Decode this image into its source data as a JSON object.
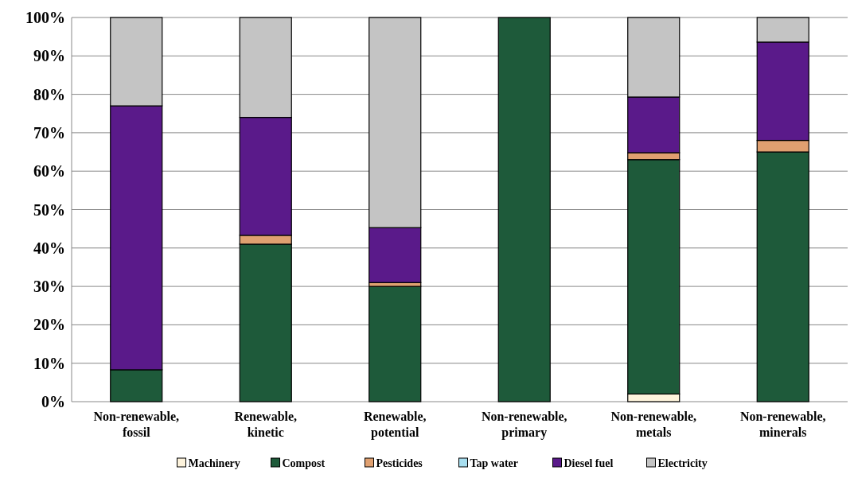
{
  "chart_data": {
    "type": "bar",
    "stacked": true,
    "categories": [
      "Non-renewable, fossil",
      "Renewable, kinetic",
      "Renewable, potential",
      "Non-renewable, primary",
      "Non-renewable, metals",
      "Non-renewable, minerals"
    ],
    "series": [
      {
        "name": "Machinery",
        "color": "#fdf3dc",
        "values": [
          0,
          0,
          0,
          0,
          2,
          0
        ]
      },
      {
        "name": "Compost",
        "color": "#1e5a3a",
        "values": [
          8.3,
          41,
          30,
          100,
          61,
          65
        ]
      },
      {
        "name": "Pesticides",
        "color": "#e0a070",
        "values": [
          0,
          2.3,
          1,
          0,
          1.8,
          3
        ]
      },
      {
        "name": "Tap water",
        "color": "#a8dff0",
        "values": [
          0,
          0,
          0,
          0,
          0,
          0
        ]
      },
      {
        "name": "Diesel fuel",
        "color": "#5a1a8a",
        "values": [
          68.7,
          30.7,
          14.3,
          0,
          14.5,
          25.6
        ]
      },
      {
        "name": "Electricity",
        "color": "#c4c4c4",
        "values": [
          23,
          26,
          54.7,
          0,
          20.7,
          6.4
        ]
      }
    ],
    "ylim": [
      0,
      100
    ],
    "yticks": [
      {
        "value": 0,
        "label": "0%"
      },
      {
        "value": 10,
        "label": "10%"
      },
      {
        "value": 20,
        "label": "20%"
      },
      {
        "value": 30,
        "label": "30%"
      },
      {
        "value": 40,
        "label": "40%"
      },
      {
        "value": 50,
        "label": "50%"
      },
      {
        "value": 60,
        "label": "60%"
      },
      {
        "value": 70,
        "label": "70%"
      },
      {
        "value": 80,
        "label": "80%"
      },
      {
        "value": 90,
        "label": "90%"
      },
      {
        "value": 100,
        "label": "100%"
      }
    ],
    "grid": "y",
    "legend": "bottom"
  }
}
